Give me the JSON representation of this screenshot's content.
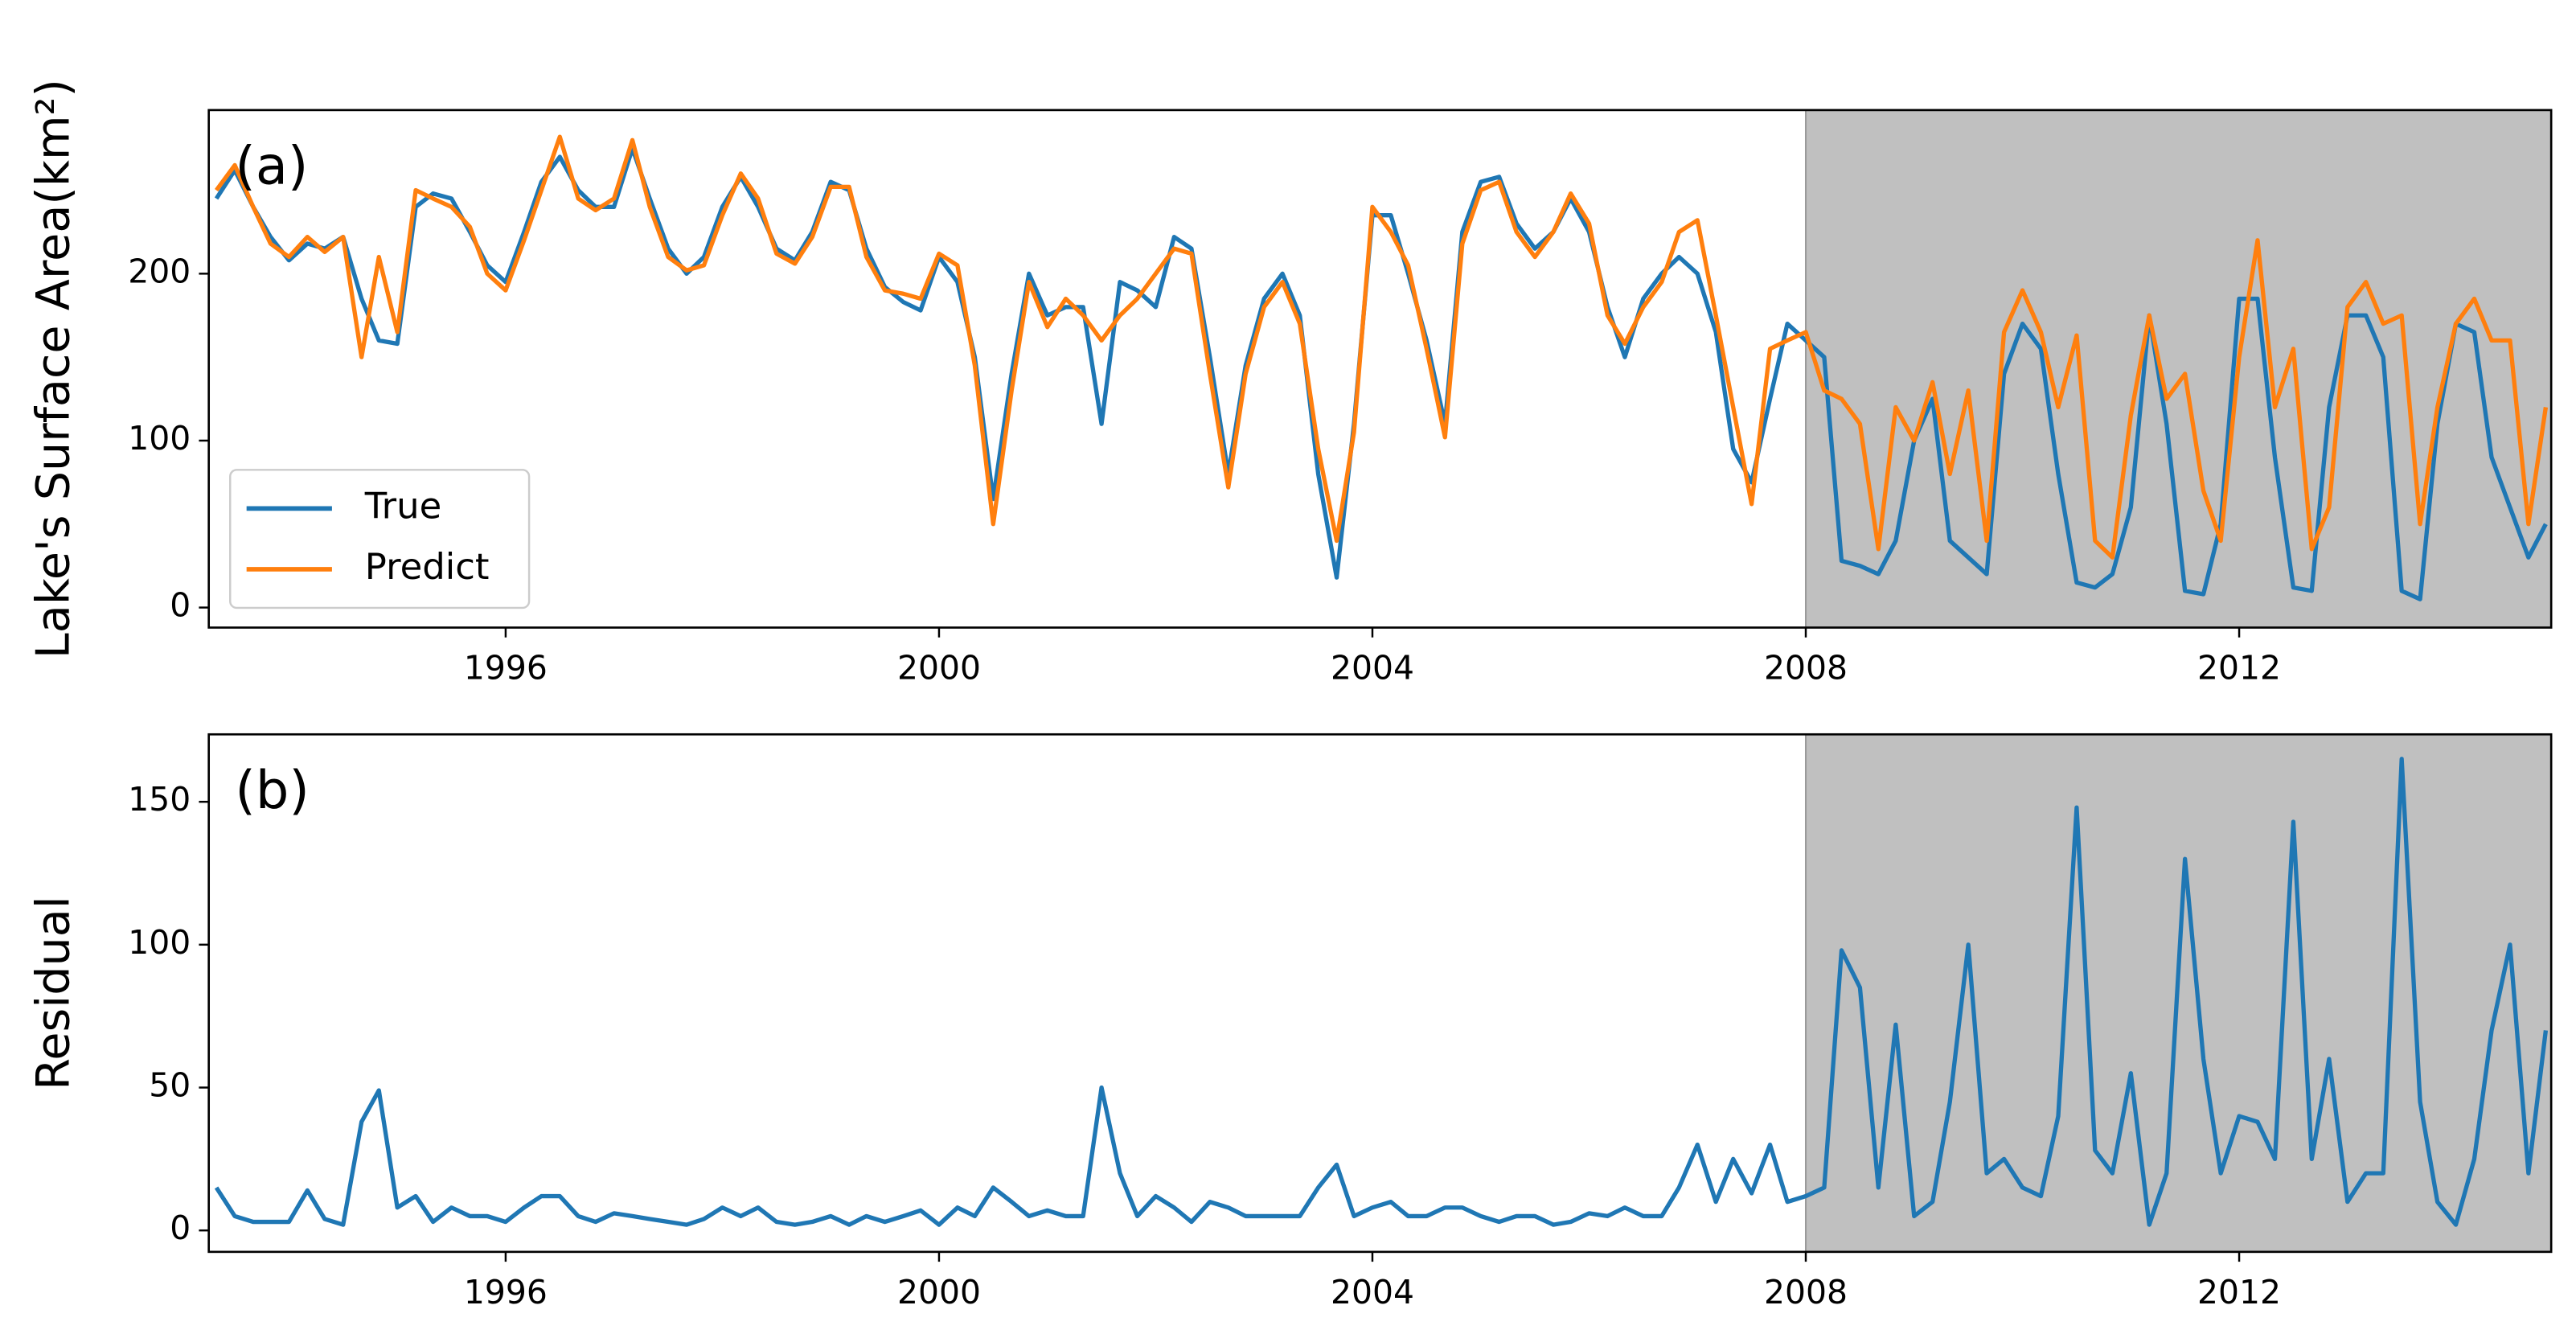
{
  "chart_data": [
    {
      "type": "line",
      "annotation": "(a)",
      "ylabel": "Lake's Surface Area(km²)",
      "x": [
        1993.33,
        1993.5,
        1993.67,
        1993.83,
        1994,
        1994.17,
        1994.33,
        1994.5,
        1994.67,
        1994.83,
        1995,
        1995.17,
        1995.33,
        1995.5,
        1995.67,
        1995.83,
        1996,
        1996.17,
        1996.33,
        1996.5,
        1996.67,
        1996.83,
        1997,
        1997.17,
        1997.33,
        1997.5,
        1997.67,
        1997.83,
        1998,
        1998.17,
        1998.33,
        1998.5,
        1998.67,
        1998.83,
        1999,
        1999.17,
        1999.33,
        1999.5,
        1999.67,
        1999.83,
        2000,
        2000.17,
        2000.33,
        2000.5,
        2000.67,
        2000.83,
        2001,
        2001.17,
        2001.33,
        2001.5,
        2001.67,
        2001.83,
        2002,
        2002.17,
        2002.33,
        2002.5,
        2002.67,
        2002.83,
        2003,
        2003.17,
        2003.33,
        2003.5,
        2003.67,
        2003.83,
        2004,
        2004.17,
        2004.33,
        2004.5,
        2004.67,
        2004.83,
        2005,
        2005.17,
        2005.33,
        2005.5,
        2005.67,
        2005.83,
        2006,
        2006.17,
        2006.33,
        2006.5,
        2006.67,
        2006.83,
        2007,
        2007.17,
        2007.33,
        2007.5,
        2007.67,
        2007.83,
        2008,
        2008.17,
        2008.33,
        2008.5,
        2008.67,
        2008.83,
        2009,
        2009.17,
        2009.33,
        2009.5,
        2009.67,
        2009.83,
        2010,
        2010.17,
        2010.33,
        2010.5,
        2010.67,
        2010.83,
        2011,
        2011.17,
        2011.33,
        2011.5,
        2011.67,
        2011.83,
        2012,
        2012.17,
        2012.33,
        2012.5,
        2012.67,
        2012.83,
        2013,
        2013.17,
        2013.33,
        2013.5,
        2013.67,
        2013.83,
        2014,
        2014.17,
        2014.33,
        2014.5,
        2014.67,
        2014.83
      ],
      "series": [
        {
          "name": "True",
          "color": "#1f77b4",
          "values": [
            245,
            262,
            240,
            222,
            208,
            218,
            215,
            222,
            185,
            160,
            158,
            240,
            248,
            245,
            225,
            205,
            195,
            225,
            255,
            270,
            250,
            240,
            240,
            275,
            245,
            215,
            200,
            210,
            240,
            258,
            240,
            215,
            208,
            225,
            255,
            250,
            215,
            192,
            183,
            178,
            210,
            195,
            150,
            65,
            140,
            200,
            175,
            180,
            180,
            110,
            195,
            190,
            180,
            222,
            215,
            150,
            80,
            145,
            185,
            200,
            175,
            80,
            18,
            110,
            235,
            235,
            200,
            160,
            110,
            225,
            255,
            258,
            230,
            215,
            225,
            245,
            225,
            180,
            150,
            185,
            200,
            210,
            200,
            165,
            95,
            75,
            125,
            170,
            160,
            150,
            28,
            25,
            20,
            40,
            100,
            125,
            40,
            30,
            20,
            140,
            170,
            155,
            80,
            15,
            12,
            20,
            60,
            175,
            110,
            10,
            8,
            50,
            185,
            185,
            90,
            12,
            10,
            120,
            175,
            175,
            150,
            10,
            5,
            110,
            170,
            165,
            90,
            60,
            30,
            50
          ]
        },
        {
          "name": "Predict",
          "color": "#ff7f0e",
          "values": [
            250,
            265,
            240,
            218,
            210,
            222,
            213,
            222,
            150,
            210,
            165,
            250,
            245,
            240,
            228,
            200,
            190,
            220,
            250,
            282,
            245,
            238,
            245,
            280,
            240,
            210,
            202,
            205,
            235,
            260,
            245,
            212,
            206,
            222,
            252,
            252,
            210,
            190,
            188,
            185,
            212,
            205,
            145,
            50,
            130,
            195,
            168,
            185,
            175,
            160,
            175,
            185,
            200,
            215,
            212,
            140,
            72,
            140,
            180,
            195,
            170,
            95,
            40,
            105,
            240,
            225,
            205,
            155,
            102,
            218,
            250,
            255,
            225,
            210,
            225,
            248,
            230,
            175,
            158,
            180,
            195,
            225,
            232,
            175,
            120,
            62,
            155,
            160,
            165,
            130,
            125,
            110,
            35,
            120,
            100,
            135,
            80,
            130,
            40,
            165,
            190,
            165,
            120,
            163,
            40,
            30,
            115,
            175,
            125,
            140,
            70,
            40,
            150,
            220,
            120,
            155,
            35,
            60,
            180,
            195,
            170,
            175,
            50,
            120,
            170,
            185,
            160,
            160,
            50,
            120
          ]
        }
      ],
      "xlim": [
        1993.26,
        2014.88
      ],
      "xticks": [
        1996,
        2000,
        2004,
        2008,
        2012
      ],
      "ylim": [
        -12,
        298
      ],
      "yticks": [
        0,
        100,
        200
      ],
      "shade_start": 2008,
      "shade_color": "#c0c0c0",
      "legend": "lower left"
    },
    {
      "type": "line",
      "annotation": "(b)",
      "ylabel": "Residual",
      "x": [
        1993.33,
        1993.5,
        1993.67,
        1993.83,
        1994,
        1994.17,
        1994.33,
        1994.5,
        1994.67,
        1994.83,
        1995,
        1995.17,
        1995.33,
        1995.5,
        1995.67,
        1995.83,
        1996,
        1996.17,
        1996.33,
        1996.5,
        1996.67,
        1996.83,
        1997,
        1997.17,
        1997.33,
        1997.5,
        1997.67,
        1997.83,
        1998,
        1998.17,
        1998.33,
        1998.5,
        1998.67,
        1998.83,
        1999,
        1999.17,
        1999.33,
        1999.5,
        1999.67,
        1999.83,
        2000,
        2000.17,
        2000.33,
        2000.5,
        2000.67,
        2000.83,
        2001,
        2001.17,
        2001.33,
        2001.5,
        2001.67,
        2001.83,
        2002,
        2002.17,
        2002.33,
        2002.5,
        2002.67,
        2002.83,
        2003,
        2003.17,
        2003.33,
        2003.5,
        2003.67,
        2003.83,
        2004,
        2004.17,
        2004.33,
        2004.5,
        2004.67,
        2004.83,
        2005,
        2005.17,
        2005.33,
        2005.5,
        2005.67,
        2005.83,
        2006,
        2006.17,
        2006.33,
        2006.5,
        2006.67,
        2006.83,
        2007,
        2007.17,
        2007.33,
        2007.5,
        2007.67,
        2007.83,
        2008,
        2008.17,
        2008.33,
        2008.5,
        2008.67,
        2008.83,
        2009,
        2009.17,
        2009.33,
        2009.5,
        2009.67,
        2009.83,
        2010,
        2010.17,
        2010.33,
        2010.5,
        2010.67,
        2010.83,
        2011,
        2011.17,
        2011.33,
        2011.5,
        2011.67,
        2011.83,
        2012,
        2012.17,
        2012.33,
        2012.5,
        2012.67,
        2012.83,
        2013,
        2013.17,
        2013.33,
        2013.5,
        2013.67,
        2013.83,
        2014,
        2014.17,
        2014.33,
        2014.5,
        2014.67,
        2014.83
      ],
      "series": [
        {
          "color": "#1f77b4",
          "values": [
            15,
            5,
            3,
            3,
            3,
            14,
            4,
            2,
            38,
            49,
            8,
            12,
            3,
            8,
            5,
            5,
            3,
            8,
            12,
            12,
            5,
            3,
            6,
            5,
            4,
            3,
            2,
            4,
            8,
            5,
            8,
            3,
            2,
            3,
            5,
            2,
            5,
            3,
            5,
            7,
            2,
            8,
            5,
            15,
            10,
            5,
            7,
            5,
            5,
            50,
            20,
            5,
            12,
            8,
            3,
            10,
            8,
            5,
            5,
            5,
            5,
            15,
            23,
            5,
            8,
            10,
            5,
            5,
            8,
            8,
            5,
            3,
            5,
            5,
            2,
            3,
            6,
            5,
            8,
            5,
            5,
            15,
            30,
            10,
            25,
            13,
            30,
            10,
            12,
            15,
            98,
            85,
            15,
            72,
            5,
            10,
            45,
            100,
            20,
            25,
            15,
            12,
            40,
            148,
            28,
            20,
            55,
            2,
            20,
            130,
            60,
            20,
            40,
            38,
            25,
            143,
            25,
            60,
            10,
            20,
            20,
            165,
            45,
            10,
            2,
            25,
            70,
            100,
            20,
            70
          ]
        }
      ],
      "xlim": [
        1993.26,
        2014.88
      ],
      "xticks": [
        1996,
        2000,
        2004,
        2008,
        2012
      ],
      "ylim": [
        -7.5,
        173.6
      ],
      "yticks": [
        0,
        50,
        100,
        150
      ],
      "shade_start": 2008,
      "shade_color": "#c0c0c0"
    }
  ]
}
